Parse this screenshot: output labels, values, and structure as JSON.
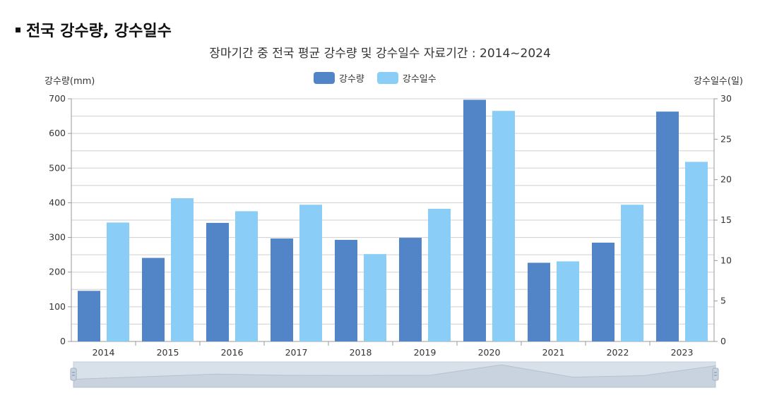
{
  "page": {
    "title": "전국 강수량, 강수일수",
    "subtitle": "장마기간 중 전국 평균 강수량 및 강수일수 자료기간 : 2014~2024"
  },
  "colors": {
    "precip": "#5285c7",
    "days": "#8acdf6",
    "grid": "#cfcfcf",
    "slider_bg": "#d8e0ea",
    "slider_area": "#c8d3df"
  },
  "chart_data": {
    "type": "bar",
    "categories": [
      "2014",
      "2015",
      "2016",
      "2017",
      "2018",
      "2019",
      "2020",
      "2021",
      "2022",
      "2023"
    ],
    "series": [
      {
        "name": "강수량",
        "axis": "left",
        "values": [
          146,
          241,
          342,
          297,
          293,
          299,
          697,
          227,
          285,
          663
        ]
      },
      {
        "name": "강수일수",
        "axis": "right",
        "values": [
          14.7,
          17.7,
          16.1,
          16.9,
          10.8,
          16.4,
          28.5,
          9.9,
          16.9,
          22.2
        ]
      }
    ],
    "ylabel_left": "강수량(mm)",
    "ylabel_right": "강수일수(일)",
    "ylim_left": [
      0,
      700
    ],
    "ylim_right": [
      0,
      30
    ],
    "yticks_left": [
      "0",
      "100",
      "200",
      "300",
      "400",
      "500",
      "600",
      "700"
    ],
    "yticks_right": [
      "0",
      "5",
      "10",
      "15",
      "20",
      "25",
      "30"
    ],
    "legend": [
      "강수량",
      "강수일수"
    ],
    "legend_position": "top-center",
    "grid": true
  }
}
